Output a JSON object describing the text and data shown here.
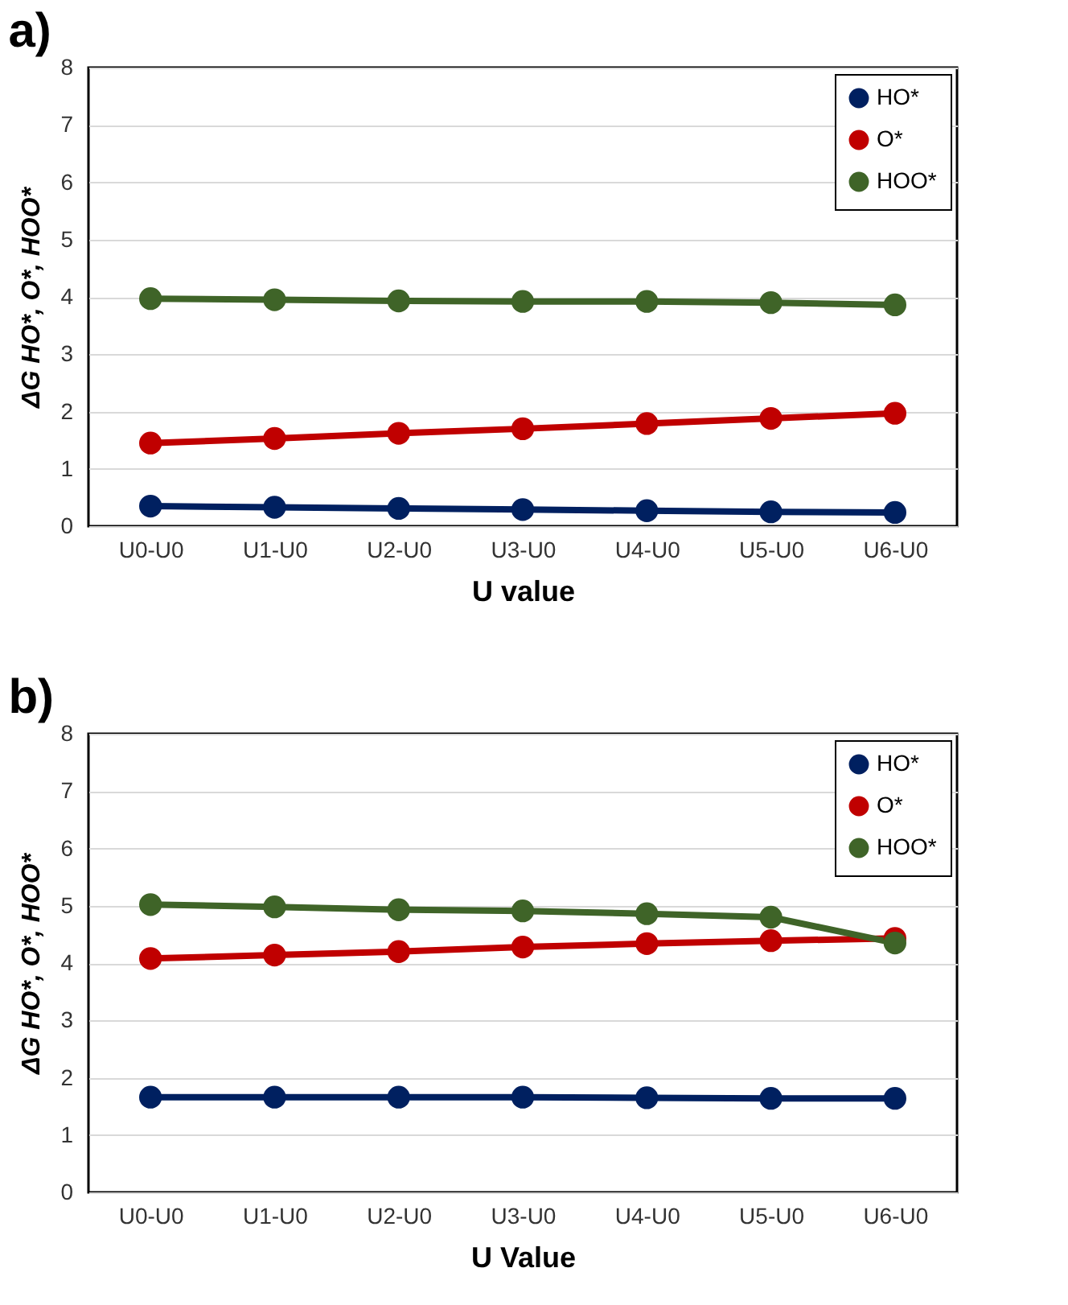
{
  "chart_data": [
    {
      "type": "line",
      "title": "a)",
      "xlabel": "U value",
      "ylabel": "ΔG HO*, O*, HOO*",
      "categories": [
        "U0-U0",
        "U1-U0",
        "U2-U0",
        "U3-U0",
        "U4-U0",
        "U5-U0",
        "U6-U0"
      ],
      "ylim": [
        0,
        8
      ],
      "yticks": [
        0,
        1,
        2,
        3,
        4,
        5,
        6,
        7,
        8
      ],
      "grid": "y",
      "legend": "top right",
      "marker": "circle",
      "line_style": "solid",
      "series": [
        {
          "name": "HO*",
          "color": "#002060",
          "values": [
            0.35,
            0.33,
            0.31,
            0.29,
            0.27,
            0.25,
            0.24
          ]
        },
        {
          "name": "O*",
          "color": "#c00000",
          "values": [
            1.45,
            1.53,
            1.62,
            1.7,
            1.79,
            1.88,
            1.97
          ]
        },
        {
          "name": "HOO*",
          "color": "#3f6428",
          "values": [
            3.97,
            3.95,
            3.93,
            3.92,
            3.92,
            3.9,
            3.86
          ]
        }
      ]
    },
    {
      "type": "line",
      "title": "b)",
      "xlabel": "U Value",
      "ylabel": "ΔG HO*, O*, HOO*",
      "categories": [
        "U0-U0",
        "U1-U0",
        "U2-U0",
        "U3-U0",
        "U4-U0",
        "U5-U0",
        "U6-U0"
      ],
      "ylim": [
        0,
        8
      ],
      "yticks": [
        0,
        1,
        2,
        3,
        4,
        5,
        6,
        7,
        8
      ],
      "grid": "y",
      "legend": "top right",
      "marker": "circle",
      "line_style": "solid",
      "series": [
        {
          "name": "HO*",
          "color": "#002060",
          "values": [
            1.66,
            1.66,
            1.66,
            1.66,
            1.65,
            1.64,
            1.64
          ]
        },
        {
          "name": "O*",
          "color": "#c00000",
          "values": [
            4.08,
            4.14,
            4.2,
            4.28,
            4.34,
            4.39,
            4.43
          ]
        },
        {
          "name": "HOO*",
          "color": "#3f6428",
          "values": [
            5.02,
            4.98,
            4.93,
            4.91,
            4.86,
            4.8,
            4.35
          ]
        }
      ]
    }
  ]
}
